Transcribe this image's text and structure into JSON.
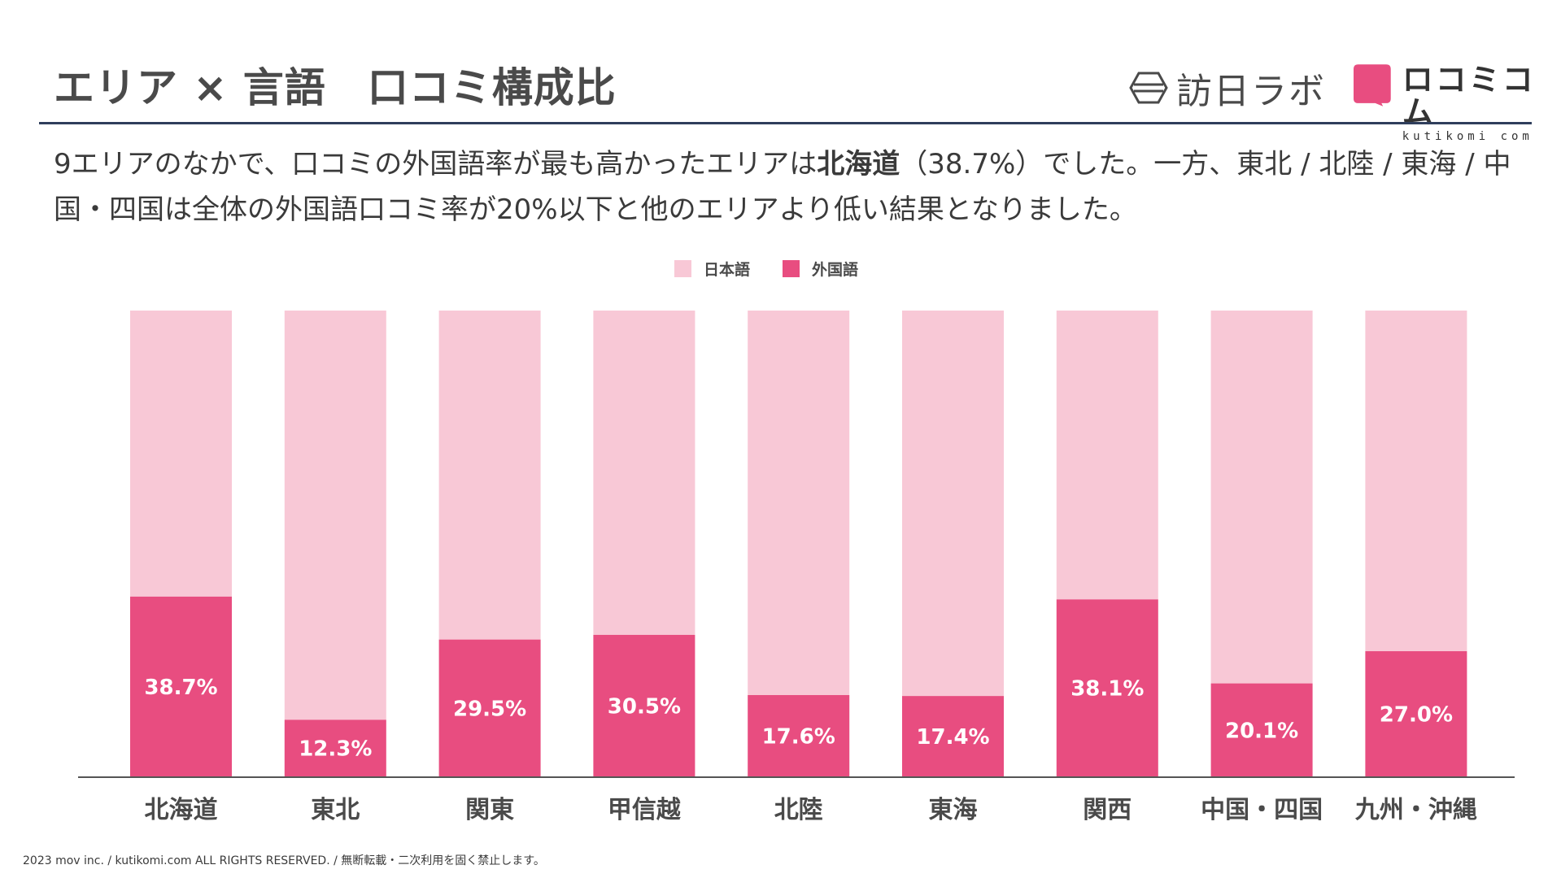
{
  "header": {
    "title": "エリア × 言語　口コミ構成比",
    "logo_houni_text": "訪日ラボ",
    "logo_kutikomi_text": "ロコミコム",
    "logo_kutikomi_sub": "kutikomi com"
  },
  "description": {
    "part1": "9エリアのなかで、口コミの外国語率が最も高かったエリアは",
    "highlight": "北海道",
    "part2": "（38.7%）でした。一方、東北 / 北陸 / 東海 / 中国・四国は全体の外国語口コミ率が20%以下と他のエリアより低い結果となりました。"
  },
  "footer": {
    "text": "2023 mov inc. / kutikomi.com ALL RIGHTS RESERVED. / 無断転載・二次利用を固く禁止します。"
  },
  "colors": {
    "japanese": "#f8c8d6",
    "foreign": "#e84d80",
    "axis": "#555555"
  },
  "chart_data": {
    "type": "bar",
    "stacked": true,
    "percent": true,
    "categories": [
      "北海道",
      "東北",
      "関東",
      "甲信越",
      "北陸",
      "東海",
      "関西",
      "中国・四国",
      "九州・沖縄"
    ],
    "series": [
      {
        "name": "日本語",
        "values": [
          61.3,
          87.7,
          70.5,
          69.5,
          82.4,
          82.6,
          61.9,
          79.9,
          73.0
        ]
      },
      {
        "name": "外国語",
        "values": [
          38.7,
          12.3,
          29.5,
          30.5,
          17.6,
          17.4,
          38.1,
          20.1,
          27.0
        ]
      }
    ],
    "data_labels": [
      "38.7%",
      "12.3%",
      "29.5%",
      "30.5%",
      "17.6%",
      "17.4%",
      "38.1%",
      "20.1%",
      "27.0%"
    ],
    "legend": [
      "日本語",
      "外国語"
    ],
    "legend_position": "top",
    "ylim": [
      0,
      100
    ]
  }
}
